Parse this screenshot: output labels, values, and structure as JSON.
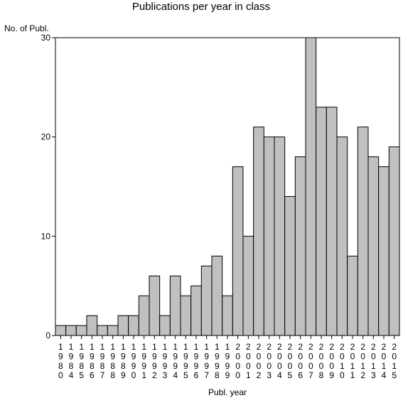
{
  "chart_data": {
    "type": "bar",
    "title": "Publications per year in class",
    "ylabel": "No. of Publ.",
    "xlabel": "Publ. year",
    "ylim": [
      0,
      30
    ],
    "yticks": [
      "0",
      "10",
      "20",
      "30"
    ],
    "categories": [
      "1980",
      "1984",
      "1985",
      "1986",
      "1987",
      "1988",
      "1989",
      "1990",
      "1991",
      "1992",
      "1993",
      "1994",
      "1995",
      "1996",
      "1997",
      "1998",
      "1999",
      "2000",
      "2001",
      "2002",
      "2003",
      "2004",
      "2005",
      "2006",
      "2007",
      "2008",
      "2009",
      "2010",
      "2011",
      "2012",
      "2013",
      "2014",
      "2015"
    ],
    "values": [
      1,
      1,
      1,
      2,
      1,
      1,
      2,
      2,
      4,
      6,
      2,
      6,
      4,
      5,
      7,
      8,
      4,
      17,
      10,
      21,
      20,
      20,
      14,
      18,
      30,
      23,
      23,
      20,
      8,
      21,
      18,
      17,
      19
    ],
    "bar_color": "#c0c0c0",
    "grid": false
  }
}
